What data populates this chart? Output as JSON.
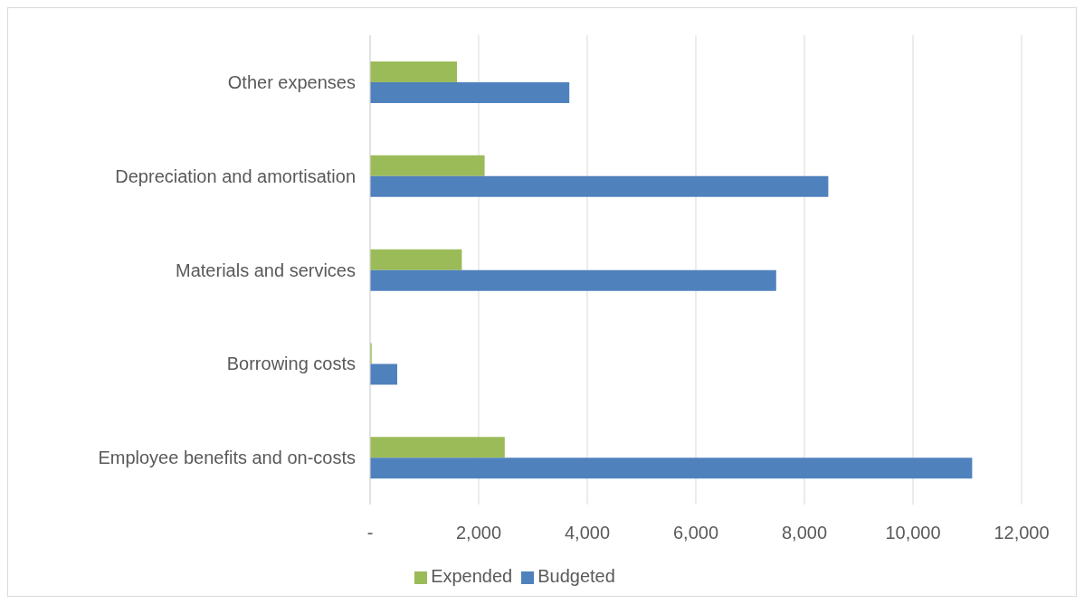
{
  "chart_data": {
    "type": "bar",
    "orientation": "horizontal",
    "categories": [
      "Other expenses",
      "Depreciation and amortisation",
      "Materials and services",
      "Borrowing costs",
      "Employee benefits and on-costs"
    ],
    "series": [
      {
        "name": "Expended",
        "color": "#9bbb59",
        "values": [
          1600,
          2110,
          1690,
          30,
          2480
        ]
      },
      {
        "name": "Budgeted",
        "color": "#4f81bd",
        "values": [
          3670,
          8440,
          7480,
          500,
          11090
        ]
      }
    ],
    "xlim": [
      0,
      12000
    ],
    "xticks": [
      {
        "value": 0,
        "label": "-"
      },
      {
        "value": 2000,
        "label": "2,000"
      },
      {
        "value": 4000,
        "label": "4,000"
      },
      {
        "value": 6000,
        "label": "6,000"
      },
      {
        "value": 8000,
        "label": "8,000"
      },
      {
        "value": 10000,
        "label": "10,000"
      },
      {
        "value": 12000,
        "label": "12,000"
      }
    ],
    "grid": "x",
    "legend": "bottom"
  }
}
